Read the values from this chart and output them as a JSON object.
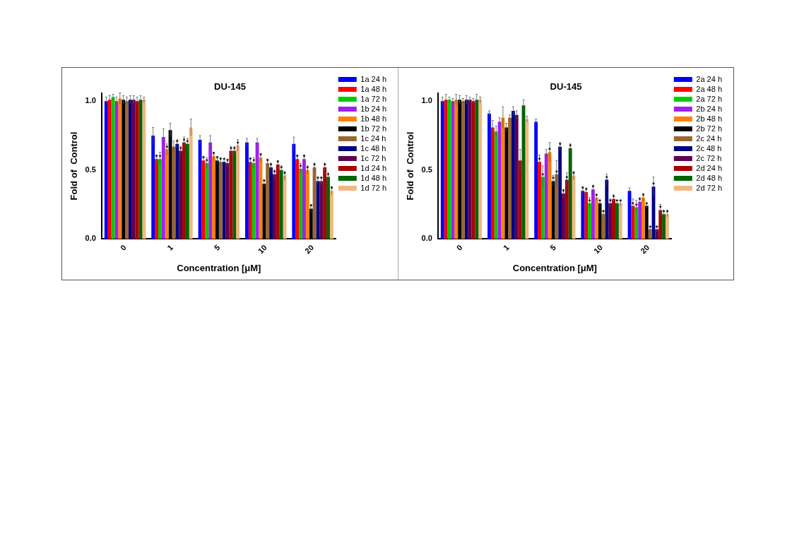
{
  "chart_data": [
    {
      "type": "bar",
      "title": "DU-145",
      "xlabel": "Concentration [μM]",
      "ylabel": "Fold of  Control",
      "categories": [
        "0",
        "1",
        "5",
        "10",
        "20"
      ],
      "ylim": [
        0,
        1.06
      ],
      "yticks": [
        {
          "value": 0,
          "label": "0.0"
        },
        {
          "value": 0.5,
          "label": "0.5"
        },
        {
          "value": 1,
          "label": "1.0"
        }
      ],
      "grid": false,
      "legend": "right",
      "series": [
        {
          "name": "1a 24 h",
          "color": "#0000ff",
          "values": [
            1.0,
            0.75,
            0.72,
            0.7,
            0.69
          ],
          "errors": [
            0.03,
            0.06,
            0.03,
            0.03,
            0.05
          ],
          "value_labels": [
            null,
            null,
            null,
            null,
            null
          ]
        },
        {
          "name": "1a 48 h",
          "color": "#ff0000",
          "values": [
            1.01,
            0.58,
            0.57,
            0.56,
            0.58
          ],
          "errors": [
            0.03,
            0.03,
            0.03,
            0.03,
            0.03
          ],
          "value_labels": [
            null,
            "*",
            "*",
            "*",
            "*"
          ]
        },
        {
          "name": "1a 72 h",
          "color": "#00cc00",
          "values": [
            1.03,
            0.58,
            0.55,
            0.55,
            0.51
          ],
          "errors": [
            0.02,
            0.05,
            0.04,
            0.04,
            0.04
          ],
          "value_labels": [
            null,
            "*",
            "*",
            "*",
            "*"
          ]
        },
        {
          "name": "1b 24 h",
          "color": "#a020f0",
          "values": [
            1.0,
            0.74,
            0.7,
            0.7,
            0.58
          ],
          "errors": [
            0.03,
            0.06,
            0.05,
            0.03,
            0.03
          ],
          "value_labels": [
            null,
            null,
            null,
            null,
            "*"
          ]
        },
        {
          "name": "1b 48 h",
          "color": "#ff8000",
          "values": [
            1.02,
            0.65,
            0.6,
            0.59,
            0.5
          ],
          "errors": [
            0.04,
            0.04,
            0.03,
            0.03,
            0.03
          ],
          "value_labels": [
            null,
            "*",
            "*",
            "*",
            "*"
          ]
        },
        {
          "name": "1b 72 h",
          "color": "#000000",
          "values": [
            1.01,
            0.79,
            0.57,
            0.4,
            0.22
          ],
          "errors": [
            0.03,
            0.05,
            0.03,
            0.03,
            0.03
          ],
          "value_labels": [
            null,
            null,
            "*",
            "*",
            "*"
          ]
        },
        {
          "name": "1c 24 h",
          "color": "#996633",
          "values": [
            1.0,
            0.67,
            0.56,
            0.55,
            0.52
          ],
          "errors": [
            0.03,
            0.04,
            0.03,
            0.03,
            0.03
          ],
          "value_labels": [
            null,
            null,
            "*",
            "*",
            "*"
          ]
        },
        {
          "name": "1c 48 h",
          "color": "#000080",
          "values": [
            1.01,
            0.69,
            0.56,
            0.52,
            0.42
          ],
          "errors": [
            0.03,
            0.03,
            0.02,
            0.03,
            0.03
          ],
          "value_labels": [
            null,
            "*",
            "*",
            "*",
            "*"
          ]
        },
        {
          "name": "1c 72 h",
          "color": "#600050",
          "values": [
            1.01,
            0.64,
            0.55,
            0.47,
            0.42
          ],
          "errors": [
            0.03,
            0.03,
            0.03,
            0.03,
            0.03
          ],
          "value_labels": [
            null,
            "*",
            "*",
            "*",
            "*"
          ]
        },
        {
          "name": "1d 24 h",
          "color": "#aa0000",
          "values": [
            1.0,
            0.7,
            0.64,
            0.54,
            0.52
          ],
          "errors": [
            0.03,
            0.04,
            0.03,
            0.03,
            0.03
          ],
          "value_labels": [
            null,
            "*",
            "*",
            "*",
            "*"
          ]
        },
        {
          "name": "1d 48 h",
          "color": "#006400",
          "values": [
            1.01,
            0.69,
            0.64,
            0.5,
            0.45
          ],
          "errors": [
            0.03,
            0.04,
            0.03,
            0.03,
            0.03
          ],
          "value_labels": [
            null,
            "*",
            "*",
            "*",
            "*"
          ]
        },
        {
          "name": "1d 72 h",
          "color": "#f0b880",
          "values": [
            1.01,
            0.81,
            0.68,
            0.46,
            0.35
          ],
          "errors": [
            0.02,
            0.06,
            0.04,
            0.03,
            0.03
          ],
          "value_labels": [
            null,
            null,
            "*",
            "*",
            "*"
          ]
        }
      ]
    },
    {
      "type": "bar",
      "title": "DU-145",
      "xlabel": "Concentration [μM]",
      "ylabel": "Fold of  Control",
      "categories": [
        "0",
        "1",
        "5",
        "10",
        "20"
      ],
      "ylim": [
        0,
        1.06
      ],
      "yticks": [
        {
          "value": 0,
          "label": "0.0"
        },
        {
          "value": 0.5,
          "label": "0.5"
        },
        {
          "value": 1,
          "label": "1.0"
        }
      ],
      "grid": false,
      "legend": "right",
      "series": [
        {
          "name": "2a 24 h",
          "color": "#0000ff",
          "values": [
            1.0,
            0.91,
            0.85,
            0.35,
            0.35
          ],
          "errors": [
            0.03,
            0.02,
            0.02,
            0.03,
            0.02
          ],
          "value_labels": [
            null,
            null,
            null,
            "*",
            null
          ]
        },
        {
          "name": "2a 48 h",
          "color": "#ff0000",
          "values": [
            1.01,
            0.81,
            0.56,
            0.34,
            0.24
          ],
          "errors": [
            0.04,
            0.05,
            0.05,
            0.03,
            0.05
          ],
          "value_labels": [
            null,
            null,
            "*",
            "*",
            "*"
          ]
        },
        {
          "name": "2a 72 h",
          "color": "#00cc00",
          "values": [
            1.01,
            0.78,
            0.45,
            0.26,
            0.23
          ],
          "errors": [
            0.02,
            0.04,
            0.08,
            0.04,
            0.05
          ],
          "value_labels": [
            null,
            null,
            "*",
            "*",
            "*"
          ]
        },
        {
          "name": "2b 24 h",
          "color": "#a020f0",
          "values": [
            1.0,
            0.85,
            0.62,
            0.36,
            0.27
          ],
          "errors": [
            0.02,
            0.03,
            0.03,
            0.03,
            0.03
          ],
          "value_labels": [
            null,
            null,
            null,
            "*",
            "*"
          ]
        },
        {
          "name": "2b 48 h",
          "color": "#ff8000",
          "values": [
            1.01,
            0.88,
            0.63,
            0.3,
            0.3
          ],
          "errors": [
            0.04,
            0.08,
            0.07,
            0.02,
            0.03
          ],
          "value_labels": [
            null,
            null,
            "*",
            "*",
            "*"
          ]
        },
        {
          "name": "2b 72 h",
          "color": "#000000",
          "values": [
            1.01,
            0.81,
            0.42,
            0.26,
            0.24
          ],
          "errors": [
            0.03,
            0.03,
            0.04,
            0.02,
            0.02
          ],
          "value_labels": [
            null,
            null,
            "*",
            "*",
            "*"
          ]
        },
        {
          "name": "2c 24 h",
          "color": "#996633",
          "values": [
            1.0,
            0.88,
            0.47,
            0.18,
            0.07
          ],
          "errors": [
            0.02,
            0.02,
            0.1,
            0.02,
            0.02
          ],
          "value_labels": [
            null,
            null,
            "*",
            "*",
            "*"
          ]
        },
        {
          "name": "2c 48 h",
          "color": "#000080",
          "values": [
            1.01,
            0.93,
            0.67,
            0.43,
            0.38
          ],
          "errors": [
            0.03,
            0.03,
            0.03,
            0.04,
            0.07
          ],
          "value_labels": [
            null,
            null,
            "*",
            "*",
            "*"
          ]
        },
        {
          "name": "2c 72 h",
          "color": "#600050",
          "values": [
            1.01,
            0.9,
            0.33,
            0.26,
            0.07
          ],
          "errors": [
            0.02,
            0.03,
            0.03,
            0.03,
            0.02
          ],
          "value_labels": [
            null,
            null,
            "*",
            "*",
            "*"
          ]
        },
        {
          "name": "2d 24 h",
          "color": "#aa0000",
          "values": [
            1.0,
            0.57,
            0.43,
            0.29,
            0.21
          ],
          "errors": [
            0.02,
            0.08,
            0.05,
            0.03,
            0.04
          ],
          "value_labels": [
            null,
            null,
            "*",
            "*",
            "*"
          ]
        },
        {
          "name": "2d 48 h",
          "color": "#006400",
          "values": [
            1.01,
            0.97,
            0.66,
            0.26,
            0.18
          ],
          "errors": [
            0.04,
            0.04,
            0.03,
            0.02,
            0.02
          ],
          "value_labels": [
            null,
            null,
            "*",
            "*",
            "*"
          ]
        },
        {
          "name": "2d 72 h",
          "color": "#f0b880",
          "values": [
            1.01,
            0.87,
            0.46,
            0.26,
            0.18
          ],
          "errors": [
            0.02,
            0.02,
            0.03,
            0.02,
            0.02
          ],
          "value_labels": [
            null,
            null,
            "*",
            "*",
            "*"
          ]
        }
      ]
    }
  ]
}
